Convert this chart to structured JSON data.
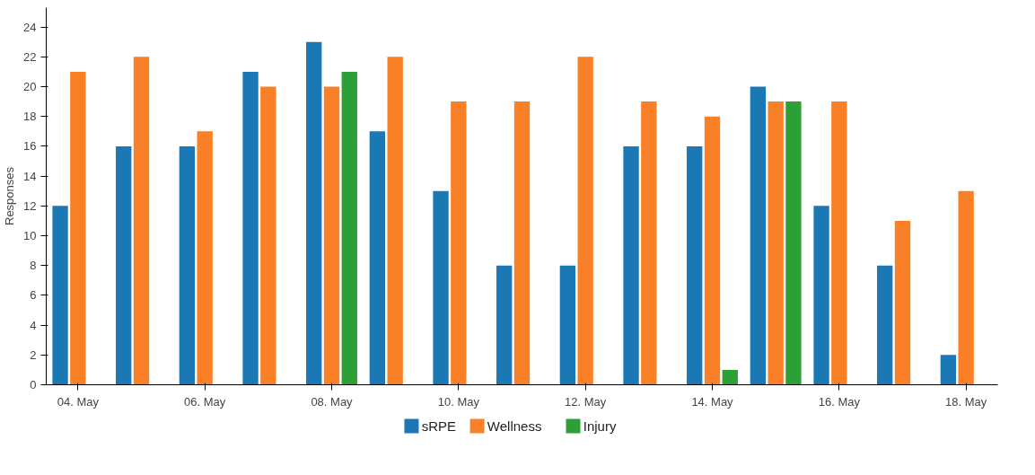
{
  "chart_data": {
    "type": "bar",
    "ylabel": "Responses",
    "categories": [
      "04. May",
      null,
      "06. May",
      null,
      "08. May",
      null,
      "10. May",
      null,
      "12. May",
      null,
      "14. May",
      null,
      "16. May",
      null,
      "18. May"
    ],
    "series": [
      {
        "name": "sRPE",
        "color": "#1a78b4",
        "values": [
          12,
          16,
          16,
          21,
          23,
          17,
          13,
          8,
          8,
          16,
          16,
          20,
          12,
          8,
          2
        ]
      },
      {
        "name": "Wellness",
        "color": "#f98027",
        "values": [
          21,
          22,
          17,
          20,
          20,
          22,
          19,
          19,
          22,
          19,
          18,
          19,
          19,
          11,
          13
        ]
      },
      {
        "name": "Injury",
        "color": "#2ca036",
        "values": [
          null,
          null,
          null,
          null,
          21,
          null,
          null,
          null,
          null,
          null,
          1,
          19,
          null,
          null,
          null
        ]
      }
    ],
    "ylim": [
      0,
      25.3
    ],
    "yticks": [
      0,
      2,
      4,
      6,
      8,
      10,
      12,
      14,
      16,
      18,
      20,
      22,
      24
    ],
    "grid": false,
    "legend": "bottom"
  }
}
